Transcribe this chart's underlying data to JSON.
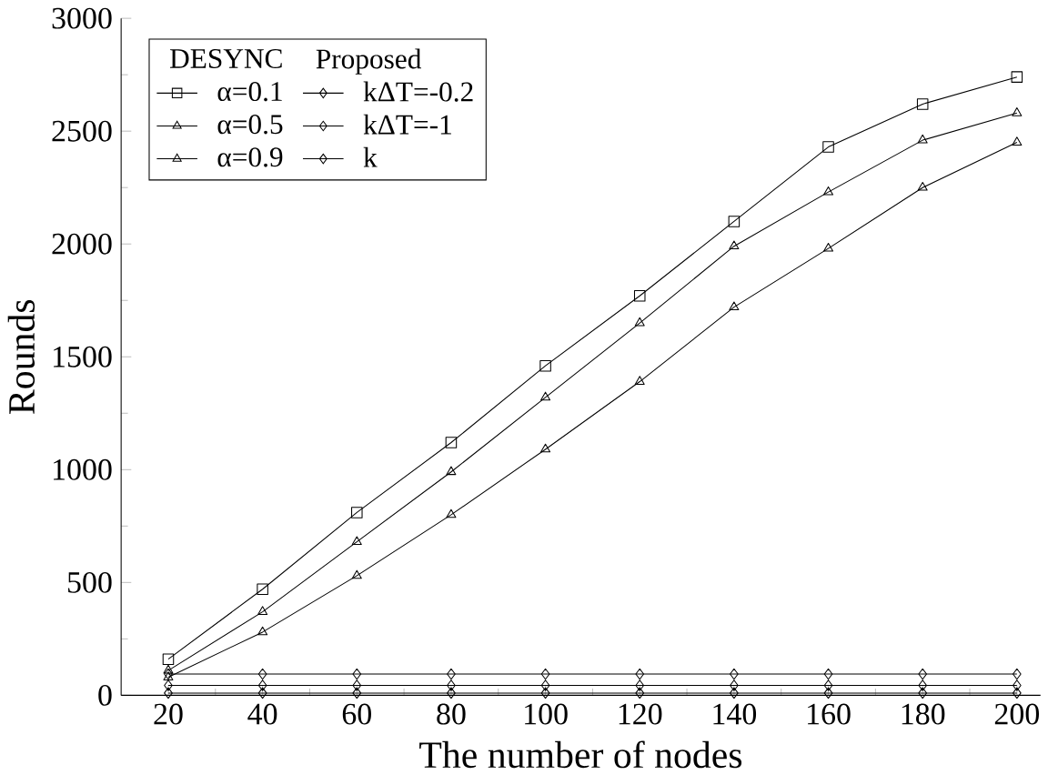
{
  "chart_data": {
    "type": "line",
    "xlabel": "The number of nodes",
    "ylabel": "Rounds",
    "x": [
      20,
      40,
      60,
      80,
      100,
      120,
      140,
      160,
      180,
      200
    ],
    "series": [
      {
        "name": "α=0.1",
        "color": "#000000",
        "marker": "square",
        "values": [
          160,
          470,
          810,
          1120,
          1460,
          1770,
          2100,
          2430,
          2620,
          2740
        ]
      },
      {
        "name": "α=0.5",
        "color": "#000000",
        "marker": "triangle",
        "values": [
          110,
          370,
          680,
          990,
          1320,
          1650,
          1990,
          2230,
          2460,
          2580
        ]
      },
      {
        "name": "α=0.9",
        "color": "#000000",
        "marker": "triangle_down",
        "values": [
          80,
          280,
          530,
          800,
          1090,
          1390,
          1720,
          1980,
          2250,
          2450
        ]
      },
      {
        "name": "kΔT=-0.2",
        "color": "#000000",
        "marker": "diamond",
        "values": [
          94,
          94,
          94,
          94,
          94,
          94,
          94,
          94,
          94,
          94
        ]
      },
      {
        "name": "kΔT=-1",
        "color": "#000000",
        "marker": "diamond",
        "values": [
          44,
          44,
          44,
          44,
          44,
          44,
          44,
          44,
          44,
          44
        ]
      },
      {
        "name": "k",
        "color": "#000000",
        "marker": "diamond",
        "values": [
          10,
          10,
          10,
          10,
          10,
          10,
          10,
          10,
          10,
          10
        ]
      }
    ],
    "annotations": [
      "DESYNC",
      "Proposed"
    ],
    "xlim": [
      10,
      205
    ],
    "ylim": [
      0,
      3000
    ],
    "xticks": [
      20,
      40,
      60,
      80,
      100,
      120,
      140,
      160,
      180,
      200
    ],
    "yticks": [
      0,
      500,
      1000,
      1500,
      2000,
      2500,
      3000
    ],
    "grid": false,
    "legend": "top left",
    "line_style": "solid"
  }
}
